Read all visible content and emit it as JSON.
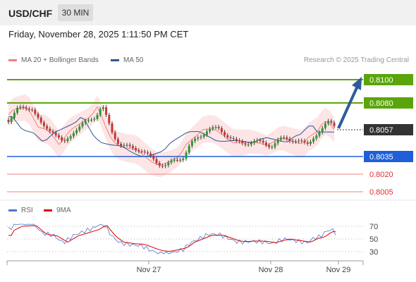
{
  "header": {
    "symbol": "USD/CHF",
    "timeframe": "30 MIN"
  },
  "datetime": "Friday, November 28, 2025 1:11:50 PM CET",
  "legend": {
    "ma20": {
      "label": "MA 20 + Bollinger Bands",
      "color": "#f08080"
    },
    "ma50": {
      "label": "MA 50",
      "color": "#2c5596"
    }
  },
  "credit": "Research © 2025 Trading Central",
  "price_levels": [
    {
      "value": "0.8100",
      "style": "green-box"
    },
    {
      "value": "0.8080",
      "style": "green-box"
    },
    {
      "value": "0.8057",
      "style": "current"
    },
    {
      "value": "0.8035",
      "style": "blue-box"
    },
    {
      "value": "0.8020",
      "style": "red-text"
    },
    {
      "value": "0.8005",
      "style": "red-text"
    }
  ],
  "rsi_legend": {
    "rsi": {
      "label": "RSI",
      "color": "#4a78c8"
    },
    "ma9": {
      "label": "9MA",
      "color": "#e00000"
    }
  },
  "rsi_ticks": [
    "70",
    "50",
    "30"
  ],
  "x_labels": [
    "Nov 27",
    "Nov 28",
    "Nov 29"
  ],
  "colors": {
    "green": "#5aa50a",
    "blue": "#1f5fd8",
    "red": "#e03030",
    "up": "#2a9a2a",
    "down": "#d03030",
    "arrow": "#2c5d9a"
  }
}
